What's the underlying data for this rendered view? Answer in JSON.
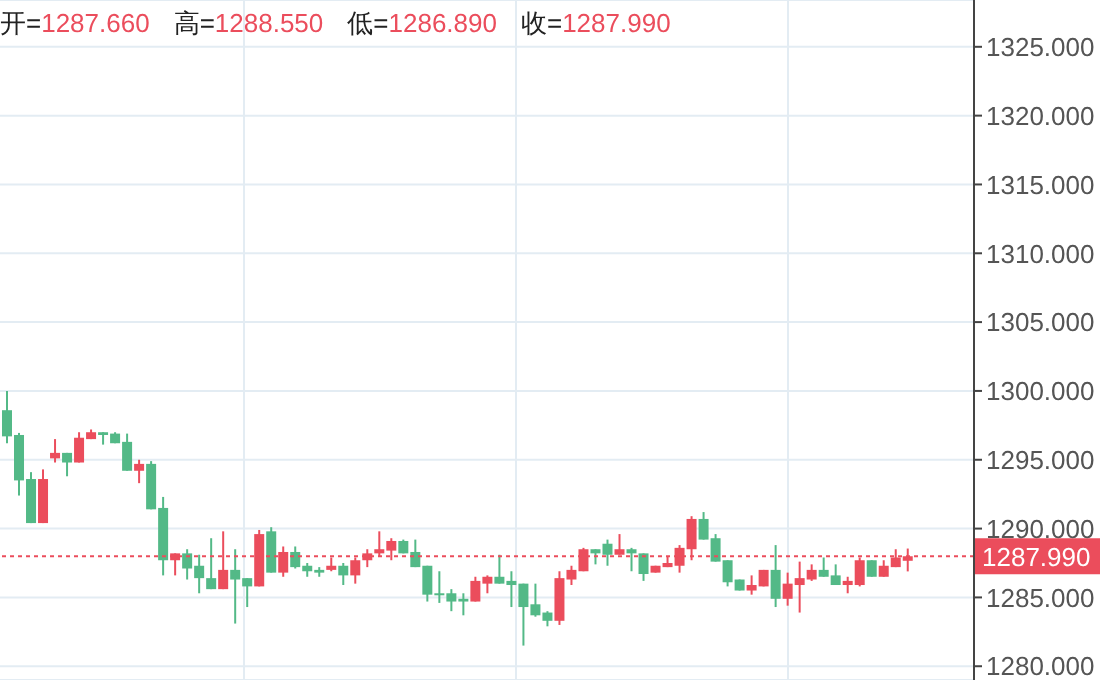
{
  "chart_data": {
    "type": "candlestick",
    "annotations": [
      "开=1287.660",
      "高=1288.550",
      "低=1286.890",
      "收=1287.990"
    ],
    "categories": [
      null,
      null,
      null,
      null,
      null,
      null,
      null,
      null,
      null,
      null,
      null,
      null,
      null,
      null,
      null,
      null,
      null,
      null,
      null,
      null,
      null,
      null,
      null,
      null,
      null,
      null,
      null,
      null,
      null,
      null,
      null,
      null,
      null,
      null,
      null,
      null,
      null,
      null,
      null,
      null,
      null,
      null,
      null,
      null,
      null,
      null,
      null,
      null,
      null,
      null,
      null,
      null,
      null,
      null,
      null,
      null,
      null,
      null,
      null,
      null,
      null,
      null,
      null,
      null,
      null,
      null,
      null,
      null,
      null,
      null,
      null,
      null,
      null,
      null,
      null,
      null
    ],
    "ohlc": [
      [
        1298.6,
        1300.0,
        1296.2,
        1296.7
      ],
      [
        1296.8,
        1296.95,
        1292.4,
        1293.5
      ],
      [
        1293.6,
        1294.1,
        1290.4,
        1290.4
      ],
      [
        1290.4,
        1294.3,
        1290.4,
        1293.6
      ],
      [
        1295.1,
        1296.5,
        1294.8,
        1295.5
      ],
      [
        1295.5,
        1295.5,
        1293.8,
        1294.8
      ],
      [
        1294.8,
        1297.0,
        1294.8,
        1296.6
      ],
      [
        1296.5,
        1297.2,
        1296.5,
        1297.0
      ],
      [
        1297.0,
        1297.0,
        1296.1,
        1296.8
      ],
      [
        1296.9,
        1297.0,
        1296.2,
        1296.2
      ],
      [
        1296.3,
        1296.9,
        1294.2,
        1294.2
      ],
      [
        1294.2,
        1295.0,
        1293.3,
        1294.7
      ],
      [
        1294.7,
        1294.9,
        1291.4,
        1291.4
      ],
      [
        1291.5,
        1292.3,
        1286.6,
        1287.7
      ],
      [
        1287.7,
        1288.2,
        1286.6,
        1288.2
      ],
      [
        1288.2,
        1288.5,
        1286.3,
        1287.1
      ],
      [
        1287.3,
        1288.1,
        1285.3,
        1286.4
      ],
      [
        1286.4,
        1289.3,
        1285.6,
        1285.6
      ],
      [
        1285.6,
        1289.8,
        1285.6,
        1287.0
      ],
      [
        1287.0,
        1288.5,
        1283.1,
        1286.3
      ],
      [
        1286.4,
        1286.4,
        1284.3,
        1285.8
      ],
      [
        1285.8,
        1289.9,
        1285.8,
        1289.6
      ],
      [
        1289.8,
        1290.1,
        1286.8,
        1286.8
      ],
      [
        1286.8,
        1288.7,
        1286.5,
        1288.3
      ],
      [
        1288.3,
        1288.7,
        1287.1,
        1287.2
      ],
      [
        1287.3,
        1287.5,
        1286.5,
        1286.9
      ],
      [
        1287.0,
        1287.2,
        1286.5,
        1286.8
      ],
      [
        1287.0,
        1287.9,
        1286.9,
        1287.3
      ],
      [
        1287.3,
        1287.5,
        1285.9,
        1286.6
      ],
      [
        1286.6,
        1287.9,
        1286.0,
        1287.7
      ],
      [
        1287.7,
        1288.5,
        1287.2,
        1288.2
      ],
      [
        1288.2,
        1289.8,
        1288.0,
        1288.5
      ],
      [
        1288.4,
        1289.3,
        1287.7,
        1289.1
      ],
      [
        1289.1,
        1289.2,
        1288.2,
        1288.2
      ],
      [
        1288.3,
        1289.2,
        1287.2,
        1287.2
      ],
      [
        1287.3,
        1287.3,
        1284.7,
        1285.2
      ],
      [
        1285.3,
        1286.9,
        1284.6,
        1285.2
      ],
      [
        1285.3,
        1285.6,
        1284.0,
        1284.7
      ],
      [
        1284.9,
        1285.3,
        1283.7,
        1284.7
      ],
      [
        1284.7,
        1286.5,
        1284.7,
        1286.2
      ],
      [
        1286.0,
        1286.6,
        1285.3,
        1286.5
      ],
      [
        1286.5,
        1288.1,
        1286.0,
        1286.0
      ],
      [
        1286.2,
        1286.9,
        1284.3,
        1285.9
      ],
      [
        1286.0,
        1286.0,
        1281.5,
        1284.3
      ],
      [
        1284.5,
        1286.0,
        1283.6,
        1283.7
      ],
      [
        1283.9,
        1284.0,
        1282.9,
        1283.3
      ],
      [
        1283.3,
        1286.9,
        1283.0,
        1286.4
      ],
      [
        1286.3,
        1287.3,
        1285.9,
        1287.0
      ],
      [
        1286.9,
        1288.6,
        1286.9,
        1288.5
      ],
      [
        1288.5,
        1288.5,
        1287.4,
        1288.2
      ],
      [
        1288.9,
        1289.2,
        1287.3,
        1288.1
      ],
      [
        1288.1,
        1289.6,
        1288.1,
        1288.5
      ],
      [
        1288.5,
        1288.6,
        1286.9,
        1288.2
      ],
      [
        1288.2,
        1288.2,
        1286.2,
        1286.7
      ],
      [
        1286.8,
        1287.3,
        1286.8,
        1287.3
      ],
      [
        1287.2,
        1288.0,
        1287.2,
        1287.5
      ],
      [
        1287.3,
        1288.8,
        1286.8,
        1288.6
      ],
      [
        1288.5,
        1290.9,
        1287.7,
        1290.7
      ],
      [
        1290.7,
        1291.2,
        1289.2,
        1289.2
      ],
      [
        1289.3,
        1289.6,
        1287.6,
        1287.6
      ],
      [
        1287.7,
        1287.7,
        1285.8,
        1286.1
      ],
      [
        1286.3,
        1286.3,
        1285.5,
        1285.5
      ],
      [
        1285.5,
        1286.6,
        1285.2,
        1285.9
      ],
      [
        1285.8,
        1287.0,
        1285.8,
        1287.0
      ],
      [
        1287.0,
        1288.8,
        1284.3,
        1284.9
      ],
      [
        1284.9,
        1286.8,
        1284.4,
        1286.0
      ],
      [
        1285.9,
        1287.6,
        1283.9,
        1286.4
      ],
      [
        1286.3,
        1287.4,
        1286.2,
        1287.0
      ],
      [
        1287.0,
        1287.9,
        1286.5,
        1286.5
      ],
      [
        1286.6,
        1287.4,
        1285.9,
        1285.9
      ],
      [
        1285.9,
        1286.5,
        1285.3,
        1286.2
      ],
      [
        1285.9,
        1287.9,
        1285.8,
        1287.7
      ],
      [
        1287.7,
        1287.7,
        1286.5,
        1286.5
      ],
      [
        1286.5,
        1287.7,
        1286.5,
        1287.3
      ],
      [
        1287.2,
        1288.5,
        1287.2,
        1287.9
      ],
      [
        1287.66,
        1288.55,
        1286.89,
        1287.99
      ]
    ],
    "colors": [
      "#53b987",
      "#53b987",
      "#53b987",
      "#eb4d5c",
      "#eb4d5c",
      "#53b987",
      "#eb4d5c",
      "#eb4d5c",
      "#53b987",
      "#53b987",
      "#53b987",
      "#eb4d5c",
      "#53b987",
      "#53b987",
      "#eb4d5c",
      "#53b987",
      "#53b987",
      "#53b987",
      "#eb4d5c",
      "#53b987",
      "#53b987",
      "#eb4d5c",
      "#53b987",
      "#eb4d5c",
      "#53b987",
      "#53b987",
      "#53b987",
      "#eb4d5c",
      "#53b987",
      "#eb4d5c",
      "#eb4d5c",
      "#eb4d5c",
      "#eb4d5c",
      "#53b987",
      "#53b987",
      "#53b987",
      "#53b987",
      "#53b987",
      "#53b987",
      "#eb4d5c",
      "#eb4d5c",
      "#53b987",
      "#53b987",
      "#53b987",
      "#53b987",
      "#53b987",
      "#eb4d5c",
      "#eb4d5c",
      "#eb4d5c",
      "#53b987",
      "#53b987",
      "#eb4d5c",
      "#53b987",
      "#53b987",
      "#eb4d5c",
      "#eb4d5c",
      "#eb4d5c",
      "#eb4d5c",
      "#53b987",
      "#53b987",
      "#53b987",
      "#53b987",
      "#eb4d5c",
      "#eb4d5c",
      "#53b987",
      "#eb4d5c",
      "#eb4d5c",
      "#eb4d5c",
      "#53b987",
      "#53b987",
      "#eb4d5c",
      "#eb4d5c",
      "#53b987",
      "#eb4d5c",
      "#eb4d5c",
      "#eb4d5c"
    ],
    "ylim": [
      1279,
      1328.4
    ],
    "yticks": [
      {
        "value": 1280,
        "label": "1280.000"
      },
      {
        "value": 1285,
        "label": "1285.000"
      },
      {
        "value": 1290,
        "label": "1290.000"
      },
      {
        "value": 1295,
        "label": "1295.000"
      },
      {
        "value": 1300,
        "label": "1300.000"
      },
      {
        "value": 1305,
        "label": "1305.000"
      },
      {
        "value": 1310,
        "label": "1310.000"
      },
      {
        "value": 1315,
        "label": "1315.000"
      },
      {
        "value": 1320,
        "label": "1320.000"
      },
      {
        "value": 1325,
        "label": "1325.000"
      }
    ],
    "ref_lines": [
      {
        "axis": "y",
        "value": 1287.99,
        "label": "1287.990",
        "color": "#eb4d5c",
        "line_style": "dotted"
      }
    ],
    "grid": true,
    "tick_labels": "y"
  }
}
